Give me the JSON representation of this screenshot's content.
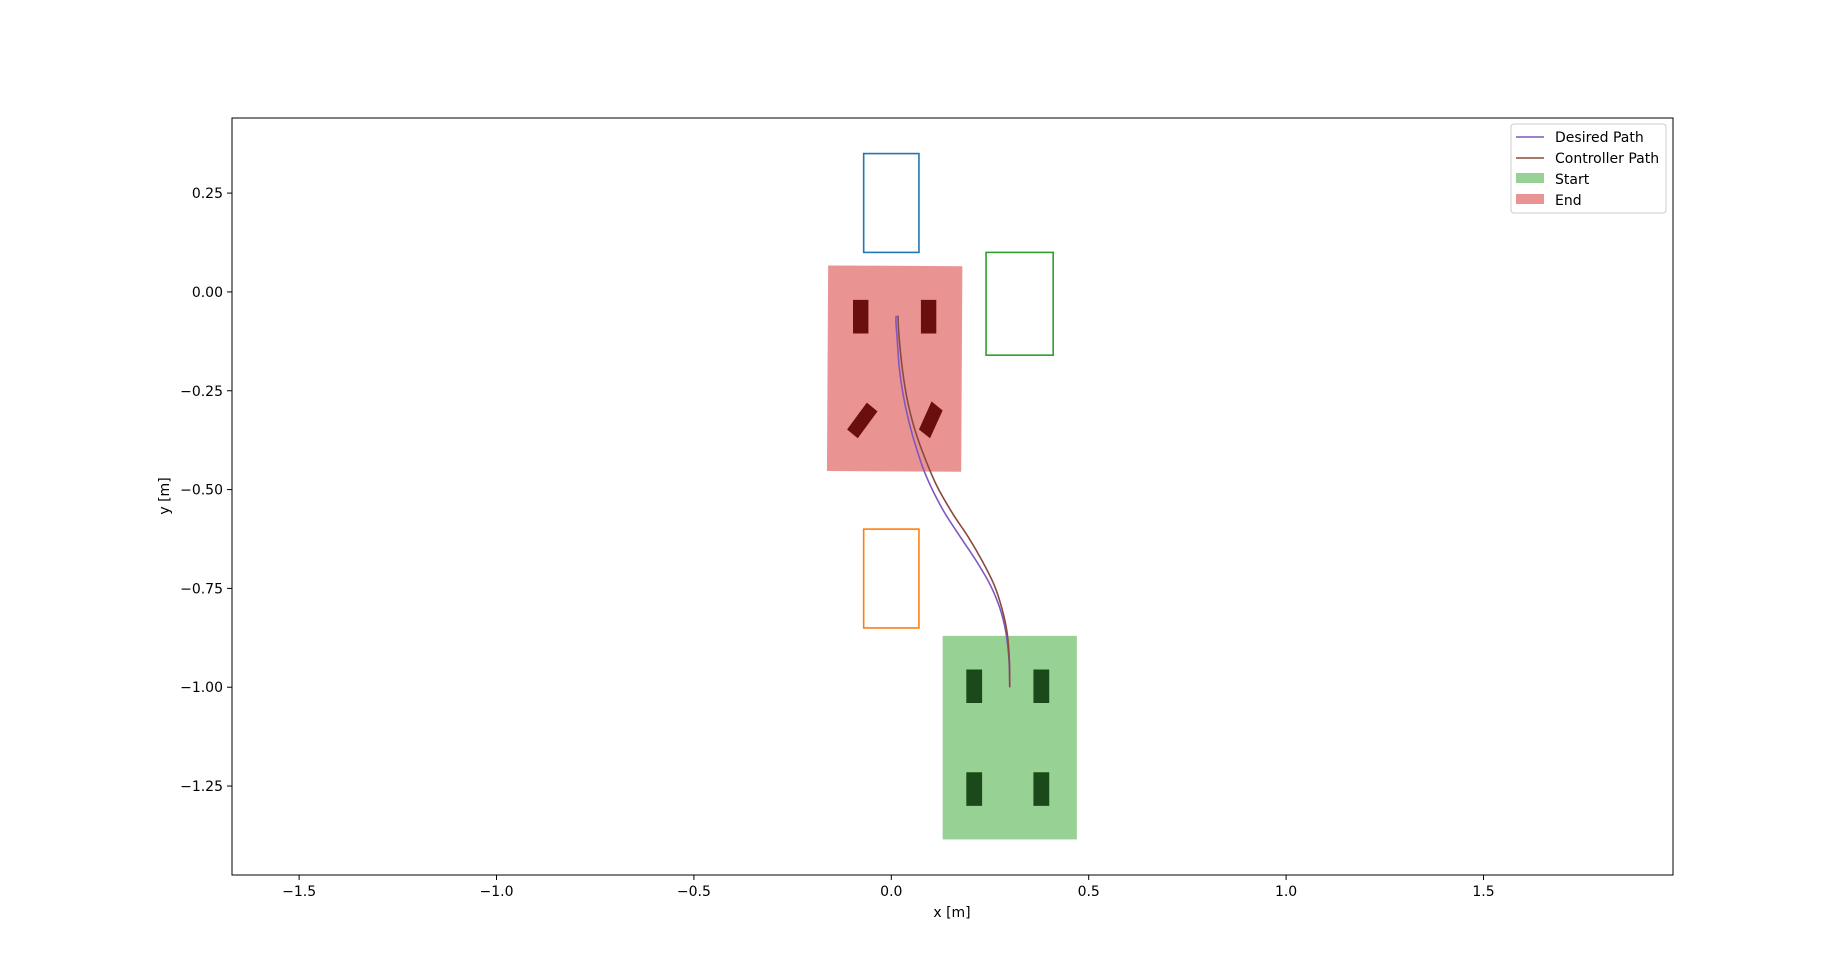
{
  "chart_data": {
    "type": "line",
    "xlabel": "x [m]",
    "ylabel": "y [m]",
    "xlim": [
      -1.67,
      1.98
    ],
    "ylim": [
      -1.475,
      0.44
    ],
    "xticks": [
      -1.5,
      -1.0,
      -0.5,
      0.0,
      0.5,
      1.0,
      1.5
    ],
    "xtick_labels": [
      "−1.5",
      "−1.0",
      "−0.5",
      "0.0",
      "0.5",
      "1.0",
      "1.5"
    ],
    "yticks": [
      0.25,
      0.0,
      -0.25,
      -0.5,
      -0.75,
      -1.0,
      -1.25
    ],
    "ytick_labels": [
      "0.25",
      "0.00",
      "−0.25",
      "−0.50",
      "−0.75",
      "−1.00",
      "−1.25"
    ],
    "grid": false,
    "legend_position": "top-right",
    "legend": [
      {
        "label": "Desired Path",
        "kind": "line",
        "color": "#7e57c2"
      },
      {
        "label": "Controller Path",
        "kind": "line",
        "color": "#8c4a3c"
      },
      {
        "label": "Start",
        "kind": "patch",
        "color": "#98d194"
      },
      {
        "label": "End",
        "kind": "patch",
        "color": "#ea9393"
      }
    ],
    "series": [
      {
        "name": "Desired Path",
        "color": "#7e57c2",
        "x": [
          0.3,
          0.298,
          0.29,
          0.275,
          0.25,
          0.215,
          0.175,
          0.13,
          0.09,
          0.065,
          0.045,
          0.03,
          0.02,
          0.015,
          0.012,
          0.012
        ],
        "y": [
          -1.0,
          -0.93,
          -0.86,
          -0.8,
          -0.74,
          -0.68,
          -0.62,
          -0.55,
          -0.47,
          -0.4,
          -0.33,
          -0.26,
          -0.19,
          -0.12,
          -0.08,
          -0.06
        ]
      },
      {
        "name": "Controller Path",
        "color": "#8c4a3c",
        "x": [
          0.3,
          0.299,
          0.293,
          0.28,
          0.26,
          0.23,
          0.195,
          0.155,
          0.115,
          0.085,
          0.06,
          0.042,
          0.03,
          0.022,
          0.018,
          0.017
        ],
        "y": [
          -1.0,
          -0.93,
          -0.86,
          -0.8,
          -0.74,
          -0.68,
          -0.62,
          -0.56,
          -0.49,
          -0.42,
          -0.35,
          -0.28,
          -0.21,
          -0.14,
          -0.09,
          -0.06
        ]
      }
    ],
    "patches": [
      {
        "name": "Start",
        "kind": "filled-rect",
        "color": "#98d194",
        "x": [
          0.13,
          0.47
        ],
        "y": [
          -1.385,
          -0.87
        ]
      },
      {
        "name": "End",
        "kind": "filled-polygon",
        "color": "#ea9393",
        "points": [
          [
            -0.16,
            0.067
          ],
          [
            0.18,
            0.065
          ],
          [
            0.177,
            -0.455
          ],
          [
            -0.163,
            -0.453
          ]
        ]
      }
    ],
    "wheels": [
      {
        "color": "#1a4a1a",
        "points": [
          [
            0.19,
            -0.955
          ],
          [
            0.23,
            -0.955
          ],
          [
            0.23,
            -1.04
          ],
          [
            0.19,
            -1.04
          ]
        ]
      },
      {
        "color": "#1a4a1a",
        "points": [
          [
            0.36,
            -0.955
          ],
          [
            0.4,
            -0.955
          ],
          [
            0.4,
            -1.04
          ],
          [
            0.36,
            -1.04
          ]
        ]
      },
      {
        "color": "#1a4a1a",
        "points": [
          [
            0.19,
            -1.215
          ],
          [
            0.23,
            -1.215
          ],
          [
            0.23,
            -1.3
          ],
          [
            0.19,
            -1.3
          ]
        ]
      },
      {
        "color": "#1a4a1a",
        "points": [
          [
            0.36,
            -1.215
          ],
          [
            0.4,
            -1.215
          ],
          [
            0.4,
            -1.3
          ],
          [
            0.36,
            -1.3
          ]
        ]
      },
      {
        "color": "#6b0e0e",
        "points": [
          [
            -0.097,
            -0.02
          ],
          [
            -0.058,
            -0.02
          ],
          [
            -0.058,
            -0.105
          ],
          [
            -0.097,
            -0.105
          ]
        ]
      },
      {
        "color": "#6b0e0e",
        "points": [
          [
            0.075,
            -0.02
          ],
          [
            0.114,
            -0.02
          ],
          [
            0.114,
            -0.105
          ],
          [
            0.075,
            -0.105
          ]
        ]
      },
      {
        "color": "#6b0e0e",
        "points": [
          [
            -0.062,
            -0.28
          ],
          [
            -0.035,
            -0.302
          ],
          [
            -0.085,
            -0.37
          ],
          [
            -0.112,
            -0.348
          ]
        ]
      },
      {
        "color": "#6b0e0e",
        "points": [
          [
            0.102,
            -0.277
          ],
          [
            0.13,
            -0.3
          ],
          [
            0.098,
            -0.37
          ],
          [
            0.07,
            -0.348
          ]
        ]
      }
    ],
    "obstacles": [
      {
        "color": "#1f77b4",
        "x": [
          -0.07,
          0.07
        ],
        "y": [
          0.1,
          0.35
        ]
      },
      {
        "color": "#2ca02c",
        "x": [
          0.24,
          0.41
        ],
        "y": [
          -0.16,
          0.1
        ]
      },
      {
        "color": "#ff7f0e",
        "x": [
          -0.07,
          0.07
        ],
        "y": [
          -0.85,
          -0.6
        ]
      }
    ]
  }
}
